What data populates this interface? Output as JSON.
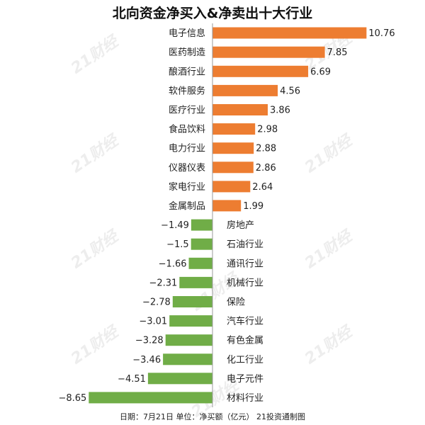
{
  "chart_data": {
    "type": "bar",
    "orientation": "horizontal",
    "title": "北向资金净买入&净卖出十大行业",
    "categories": [
      "电子信息",
      "医药制造",
      "酿酒行业",
      "软件服务",
      "医疗行业",
      "食品饮料",
      "电力行业",
      "仪器仪表",
      "家电行业",
      "金属制品",
      "房地产",
      "石油行业",
      "通讯行业",
      "机械行业",
      "保险",
      "汽车行业",
      "有色金属",
      "化工行业",
      "电子元件",
      "材料行业"
    ],
    "values": [
      10.76,
      7.85,
      6.69,
      4.56,
      3.86,
      2.98,
      2.88,
      2.86,
      2.64,
      1.99,
      -1.49,
      -1.5,
      -1.66,
      -2.31,
      -2.78,
      -3.01,
      -3.28,
      -3.46,
      -4.51,
      -8.65
    ],
    "value_labels": [
      "10.76",
      "7.85",
      "6.69",
      "4.56",
      "3.86",
      "2.98",
      "2.88",
      "2.86",
      "2.64",
      "1.99",
      "−1.49",
      "−1.5",
      "−1.66",
      "−2.31",
      "−2.78",
      "−3.01",
      "−3.28",
      "−3.46",
      "−4.51",
      "−8.65"
    ],
    "colors": {
      "positive": "#ED7D31",
      "negative": "#70AD47",
      "axis": "#999999"
    },
    "grid": false,
    "legend": "none"
  },
  "footer": "日期：7月21日 单位：净买额（亿元） 21投资通制图",
  "watermark": "21财经"
}
